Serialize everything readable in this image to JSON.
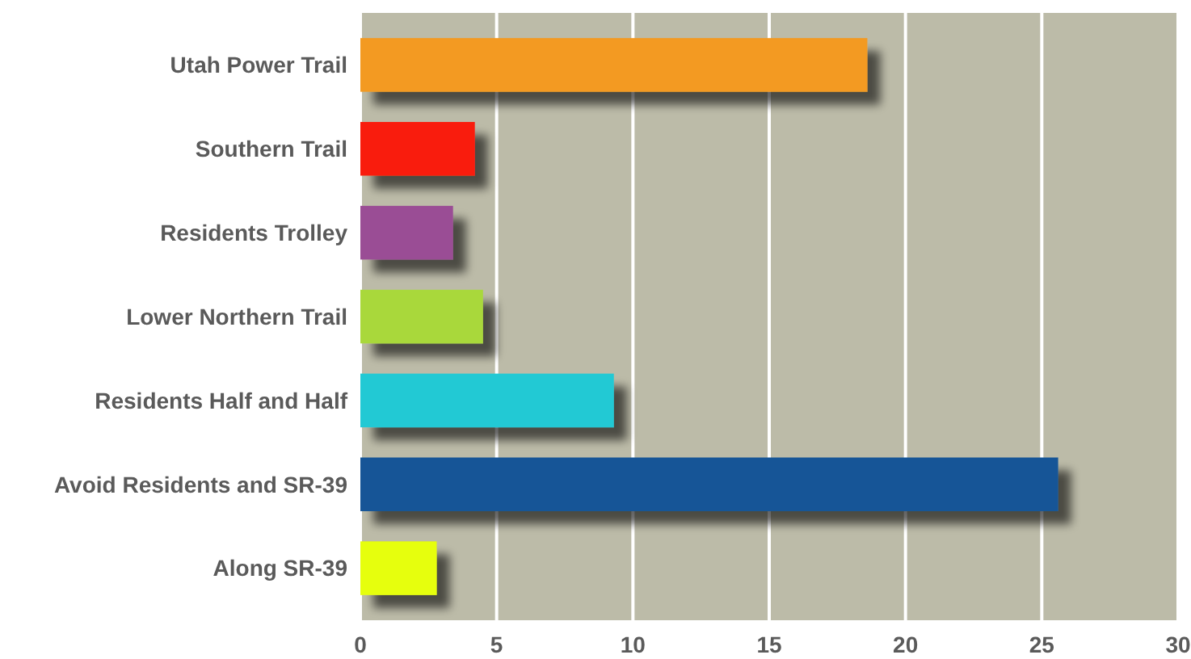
{
  "chart_data": {
    "type": "bar",
    "orientation": "horizontal",
    "categories": [
      "Utah Power Trail",
      "Southern Trail",
      "Residents Trolley",
      "Lower Northern Trail",
      "Residents Half and Half",
      "Avoid Residents and SR-39",
      "Along SR-39"
    ],
    "values": [
      18.6,
      4.2,
      3.4,
      4.5,
      9.3,
      25.6,
      2.8
    ],
    "colors": [
      "#f39a21",
      "#f91e0c",
      "#9a4d95",
      "#a9d83b",
      "#22c9d4",
      "#135597",
      "#e6ff0a"
    ],
    "xlim": [
      0,
      30
    ],
    "xticks": [
      0,
      5,
      10,
      15,
      20,
      25,
      30
    ],
    "grid": "x"
  }
}
